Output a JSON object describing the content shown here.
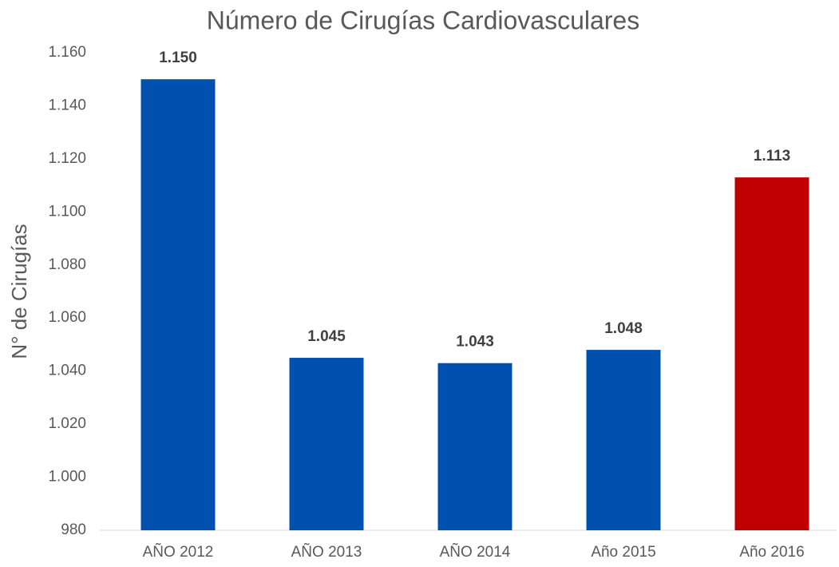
{
  "chart_data": {
    "type": "bar",
    "title": "Número de Cirugías Cardiovasculares",
    "y_label": "N° de Cirugías",
    "categories": [
      "AÑO 2012",
      "AÑO 2013",
      "AÑO 2014",
      "Año 2015",
      "Año 2016"
    ],
    "values": [
      1150,
      1045,
      1043,
      1048,
      1113
    ],
    "value_labels": [
      "1.150",
      "1.045",
      "1.043",
      "1.048",
      "1.113"
    ],
    "colors": [
      "#0050b0",
      "#0050b0",
      "#0050b0",
      "#0050b0",
      "#c00000"
    ],
    "ylim": [
      980,
      1160
    ],
    "yticks": [
      980,
      {
        "value": 1000,
        "label": "1.000"
      },
      {
        "value": 1020,
        "label": "1.020"
      },
      {
        "value": 1040,
        "label": "1.040"
      },
      {
        "value": 1060,
        "label": "1.060"
      },
      {
        "value": 1080,
        "label": "1.080"
      },
      {
        "value": 1100,
        "label": "1.100"
      },
      {
        "value": 1120,
        "label": "1.120"
      },
      {
        "value": 1140,
        "label": "1.140"
      },
      {
        "value": 1160,
        "label": "1.160"
      }
    ],
    "grid": false
  }
}
